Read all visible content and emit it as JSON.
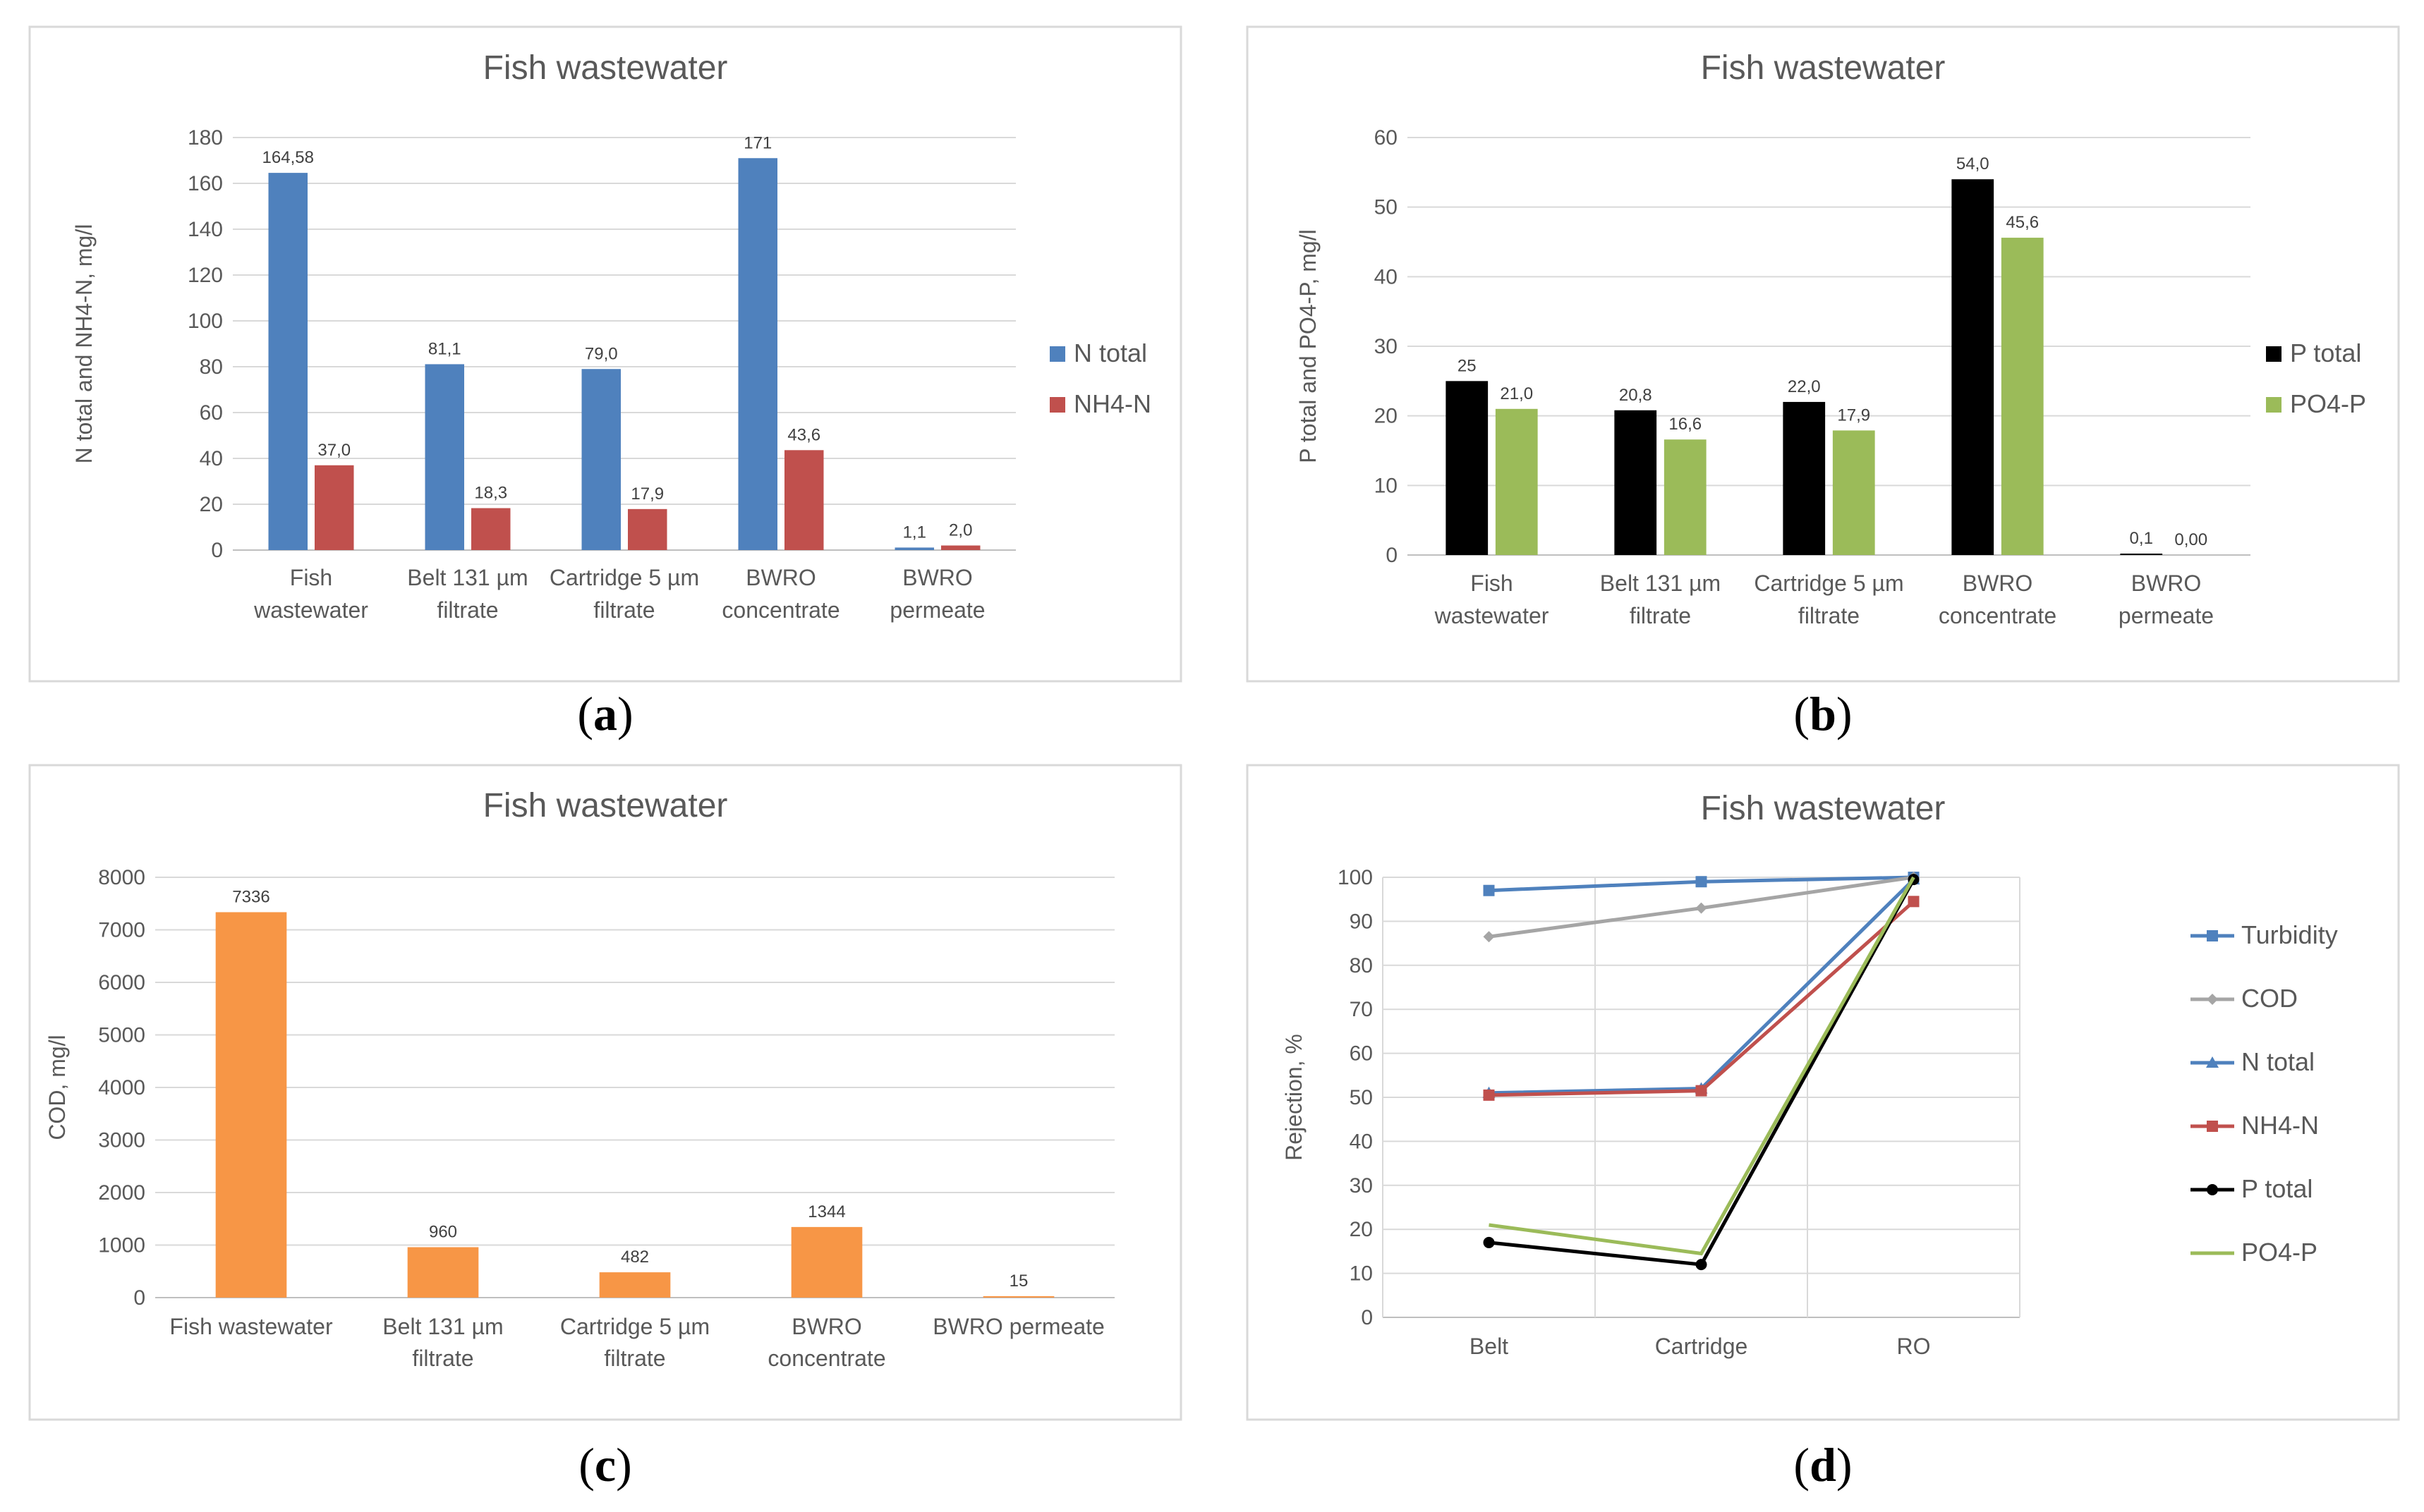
{
  "sublabels": [
    "a",
    "b",
    "c",
    "d"
  ],
  "chart_data": [
    {
      "type": "bar",
      "title": "Fish wastewater",
      "ylabel": "N total and NH4-N, mg/l",
      "xlabel": "",
      "categories": [
        [
          "Fish",
          "wastewater"
        ],
        [
          "Belt 131 µm",
          "filtrate"
        ],
        [
          "Cartridge 5 µm",
          "filtrate"
        ],
        [
          "BWRO",
          "concentrate"
        ],
        [
          "BWRO",
          "permeate"
        ]
      ],
      "ylim": [
        0,
        180
      ],
      "yticks": [
        0,
        20,
        40,
        60,
        80,
        100,
        120,
        140,
        160,
        180
      ],
      "legend_position": "right",
      "series": [
        {
          "name": "N total",
          "color": "#4f81bd",
          "values": [
            164.58,
            81.1,
            79.0,
            171,
            1.1
          ],
          "labels": [
            "164,58",
            "81,1",
            "79,0",
            "171",
            "1,1"
          ]
        },
        {
          "name": "NH4-N",
          "color": "#c0504d",
          "values": [
            37.0,
            18.3,
            17.9,
            43.6,
            2.0
          ],
          "labels": [
            "37,0",
            "18,3",
            "17,9",
            "43,6",
            "2,0"
          ]
        }
      ]
    },
    {
      "type": "bar",
      "title": "Fish wastewater",
      "ylabel": "P total and PO4-P, mg/l",
      "xlabel": "",
      "categories": [
        [
          "Fish",
          "wastewater"
        ],
        [
          "Belt 131 µm",
          "filtrate"
        ],
        [
          "Cartridge 5 µm",
          "filtrate"
        ],
        [
          "BWRO",
          "concentrate"
        ],
        [
          "BWRO",
          "permeate"
        ]
      ],
      "ylim": [
        0,
        60
      ],
      "yticks": [
        0,
        10,
        20,
        30,
        40,
        50,
        60
      ],
      "legend_position": "right",
      "series": [
        {
          "name": "P total",
          "color": "#000000",
          "values": [
            25,
            20.8,
            22.0,
            54.0,
            0.1
          ],
          "labels": [
            "25",
            "20,8",
            "22,0",
            "54,0",
            "0,1"
          ]
        },
        {
          "name": "PO4-P",
          "color": "#9bbb59",
          "values": [
            21.0,
            16.6,
            17.9,
            45.6,
            0.0
          ],
          "labels": [
            "21,0",
            "16,6",
            "17,9",
            "45,6",
            "0,00"
          ]
        }
      ]
    },
    {
      "type": "bar",
      "title": "Fish wastewater",
      "ylabel": "COD, mg/l",
      "xlabel": "",
      "categories": [
        [
          "Fish wastewater"
        ],
        [
          "Belt 131 µm",
          "filtrate"
        ],
        [
          "Cartridge 5 µm",
          "filtrate"
        ],
        [
          "BWRO",
          "concentrate"
        ],
        [
          "BWRO permeate"
        ]
      ],
      "ylim": [
        0,
        8000
      ],
      "yticks": [
        0,
        1000,
        2000,
        3000,
        4000,
        5000,
        6000,
        7000,
        8000
      ],
      "legend_position": "none",
      "series": [
        {
          "name": "COD",
          "color": "#f79646",
          "values": [
            7336,
            960,
            482,
            1344,
            15
          ],
          "labels": [
            "7336",
            "960",
            "482",
            "1344",
            "15"
          ]
        }
      ]
    },
    {
      "type": "line",
      "title": "Fish wastewater",
      "ylabel": "Rejection, %",
      "xlabel": "",
      "categories": [
        "Belt",
        "Cartridge",
        "RO"
      ],
      "ylim": [
        0,
        100
      ],
      "yticks": [
        0,
        10,
        20,
        30,
        40,
        50,
        60,
        70,
        80,
        90,
        100
      ],
      "legend_position": "right",
      "series": [
        {
          "name": "Turbidity",
          "color": "#4f81bd",
          "marker": "square",
          "values": [
            97,
            99,
            100
          ]
        },
        {
          "name": "COD",
          "color": "#a5a5a5",
          "marker": "diamond",
          "values": [
            86.5,
            93,
            100
          ]
        },
        {
          "name": "N total",
          "color": "#4f81bd",
          "marker": "triangle",
          "values": [
            51,
            52,
            99.5
          ]
        },
        {
          "name": "NH4-N",
          "color": "#c0504d",
          "marker": "square",
          "values": [
            50.5,
            51.5,
            94.5
          ]
        },
        {
          "name": "P total",
          "color": "#000000",
          "marker": "circle",
          "values": [
            17,
            12,
            99.5
          ]
        },
        {
          "name": "PO4-P",
          "color": "#9bbb59",
          "marker": "none",
          "values": [
            21,
            14.5,
            100
          ]
        }
      ]
    }
  ]
}
